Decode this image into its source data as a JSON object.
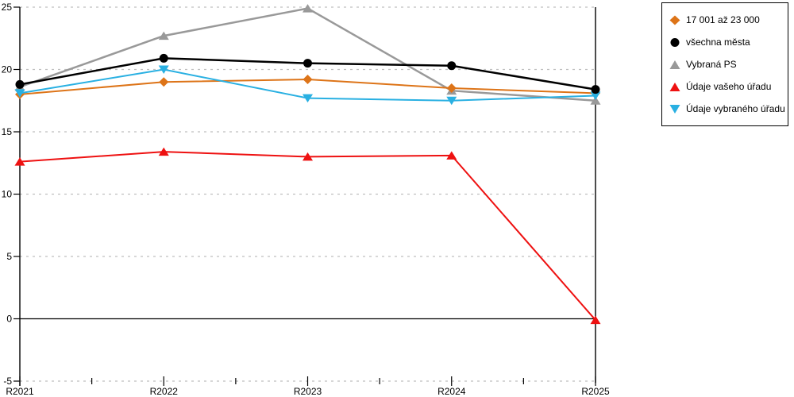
{
  "chart_data": {
    "type": "line",
    "title": "",
    "xlabel": "",
    "ylabel": "",
    "categories": [
      "R2021",
      "R2022",
      "R2023",
      "R2024",
      "R2025"
    ],
    "series": [
      {
        "name": "17 001 až 23 000",
        "color": "#DD7418",
        "marker": "diamond",
        "line_width": 2,
        "values": [
          18.0,
          19.0,
          19.2,
          18.5,
          18.1
        ]
      },
      {
        "name": "všechna města",
        "color": "#000000",
        "marker": "circle",
        "line_width": 2.5,
        "values": [
          18.8,
          20.9,
          20.5,
          20.3,
          18.4
        ]
      },
      {
        "name": "Vybraná PS",
        "color": "#999999",
        "marker": "triangle-up",
        "line_width": 2.5,
        "values": [
          18.6,
          22.7,
          24.9,
          18.3,
          17.5
        ]
      },
      {
        "name": "Údaje vašeho úřadu",
        "color": "#EE1111",
        "marker": "triangle-up",
        "line_width": 2,
        "values": [
          12.6,
          13.4,
          13.0,
          13.1,
          -0.1
        ]
      },
      {
        "name": "Údaje vybraného úřadu",
        "color": "#29B0E2",
        "marker": "triangle-down",
        "line_width": 2,
        "values": [
          18.1,
          20.0,
          17.7,
          17.5,
          17.9
        ]
      }
    ],
    "draw_order": [
      2,
      0,
      3,
      4,
      1
    ],
    "ylim": [
      -5,
      25
    ],
    "y_ticks": [
      25,
      20,
      15,
      10,
      5,
      0,
      -5
    ],
    "grid": "horizontal-dashed",
    "zero_line": true,
    "legend_position": "top-right",
    "colors": {
      "grid": "#BFBFBF",
      "axis": "#000000",
      "background": "#FFFFFF",
      "tick_label": "#000000"
    }
  }
}
